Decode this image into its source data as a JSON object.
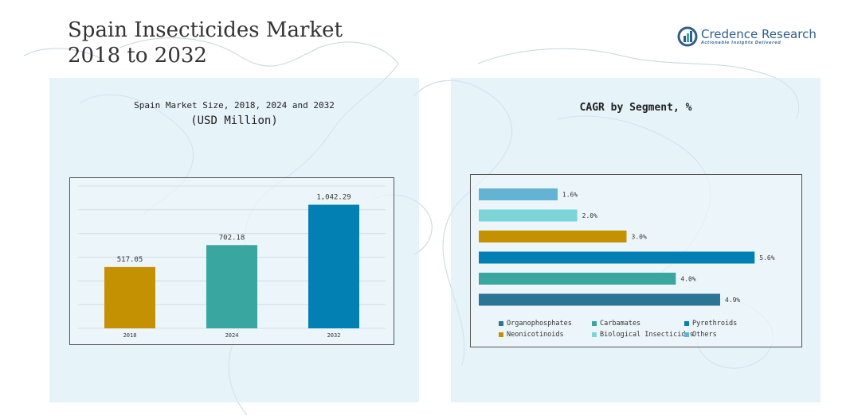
{
  "header": {
    "title": "Spain Insecticides Market\n2018 to 2032"
  },
  "brand": {
    "name": "Credence Research",
    "tagline": "Actionable Insights Delivered",
    "logo_icon": "credence-logo-icon",
    "color": "#2e5e8c"
  },
  "chart_data": [
    {
      "type": "bar",
      "title": "Spain Market Size, 2018, 2024 and 2032",
      "subtitle": "(USD Million)",
      "categories": [
        "2018",
        "2024",
        "2032"
      ],
      "values": [
        517.05,
        702.18,
        1042.29
      ],
      "value_labels": [
        "517.05",
        "702.18",
        "1,042.29"
      ],
      "colors": [
        "#c49102",
        "#3aa6a0",
        "#0280b4"
      ],
      "ylim": [
        0,
        1200
      ],
      "grid": true,
      "xlabel": "",
      "ylabel": ""
    },
    {
      "type": "bar",
      "orientation": "horizontal",
      "title": "CAGR by Segment, %",
      "series": [
        {
          "name": "Others",
          "value": 1.6,
          "label": "1.6%",
          "color": "#63b3d4"
        },
        {
          "name": "Biological Insecticides",
          "value": 2.0,
          "label": "2.0%",
          "color": "#7dd4d8"
        },
        {
          "name": "Neonicotinoids",
          "value": 3.0,
          "label": "3.0%",
          "color": "#c49102"
        },
        {
          "name": "Pyrethroids",
          "value": 5.6,
          "label": "5.6%",
          "color": "#0280b4"
        },
        {
          "name": "Carbamates",
          "value": 4.0,
          "label": "4.0%",
          "color": "#3aa6a0"
        },
        {
          "name": "Organophosphates",
          "value": 4.9,
          "label": "4.9%",
          "color": "#2b7597"
        }
      ],
      "xlim": [
        0,
        6
      ],
      "legend_position": "bottom",
      "legend": [
        {
          "name": "Organophosphates",
          "color": "#2b7597"
        },
        {
          "name": "Carbamates",
          "color": "#3aa6a0"
        },
        {
          "name": "Pyrethroids",
          "color": "#0280b4"
        },
        {
          "name": "Neonicotinoids",
          "color": "#c49102"
        },
        {
          "name": "Biological Insecticides",
          "color": "#7dd4d8"
        },
        {
          "name": "Others",
          "color": "#63b3d4"
        }
      ]
    }
  ]
}
